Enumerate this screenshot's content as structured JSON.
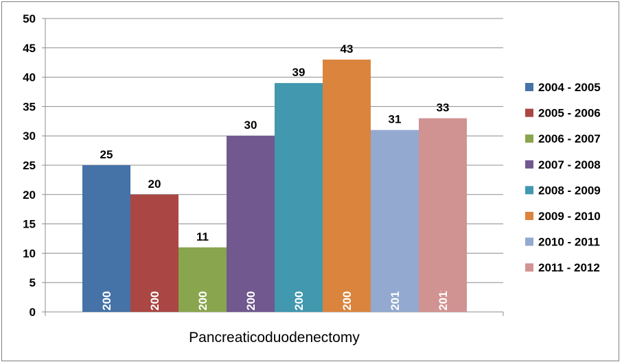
{
  "chart_data": {
    "type": "bar",
    "xlabel": "Pancreaticoduodenectomy",
    "ylim": [
      0,
      50
    ],
    "yticks": [
      0,
      5,
      10,
      15,
      20,
      25,
      30,
      35,
      40,
      45,
      50
    ],
    "grid": true,
    "legend_position": "right",
    "series": [
      {
        "name": "2004 - 2005",
        "value": 25,
        "color": "#4572a7"
      },
      {
        "name": "2005 - 2006",
        "value": 20,
        "color": "#aa4643"
      },
      {
        "name": "2006 - 2007",
        "value": 11,
        "color": "#89a54e"
      },
      {
        "name": "2007 - 2008",
        "value": 30,
        "color": "#71588f"
      },
      {
        "name": "2008 - 2009",
        "value": 39,
        "color": "#4198af"
      },
      {
        "name": "2009 - 2010",
        "value": 43,
        "color": "#db843d"
      },
      {
        "name": "2010 - 2011",
        "value": 31,
        "color": "#93a9cf"
      },
      {
        "name": "2011 - 2012",
        "value": 33,
        "color": "#d19392"
      }
    ]
  }
}
